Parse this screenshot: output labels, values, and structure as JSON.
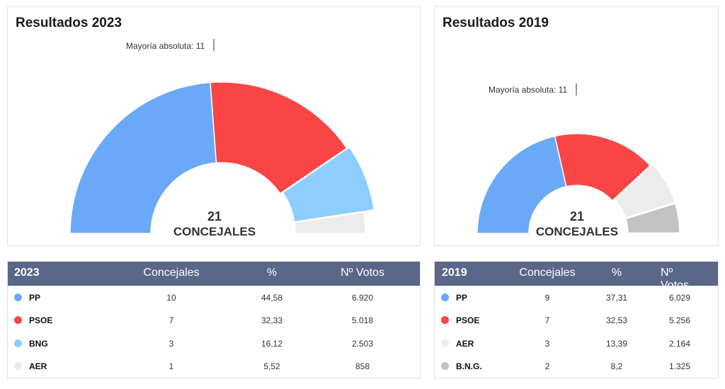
{
  "colors": {
    "header_bg": "#5a6788",
    "PP": "#6aa9f8",
    "PSOE": "#f94545",
    "BNG": "#8ecdff",
    "AER": "#ececec",
    "B.N.G.": "#c2c2c2"
  },
  "chart_data": [
    {
      "type": "parliament-semicircle",
      "title": "Resultados 2023",
      "majority_label": "Mayoría absoluta: 11",
      "majority": 11,
      "center_number": "21",
      "center_label": "CONCEJALES",
      "total_seats": 21,
      "series": [
        {
          "name": "PP",
          "seats": 10,
          "color": "#6aa9f8"
        },
        {
          "name": "PSOE",
          "seats": 7,
          "color": "#f94545"
        },
        {
          "name": "BNG",
          "seats": 3,
          "color": "#8ecdff"
        },
        {
          "name": "AER",
          "seats": 1,
          "color": "#ececec"
        }
      ]
    },
    {
      "type": "parliament-semicircle",
      "title": "Resultados 2019",
      "majority_label": "Mayoría absoluta: 11",
      "majority": 11,
      "center_number": "21",
      "center_label": "CONCEJALES",
      "total_seats": 21,
      "series": [
        {
          "name": "PP",
          "seats": 9,
          "color": "#6aa9f8"
        },
        {
          "name": "PSOE",
          "seats": 7,
          "color": "#f94545"
        },
        {
          "name": "AER",
          "seats": 3,
          "color": "#ececec"
        },
        {
          "name": "B.N.G.",
          "seats": 2,
          "color": "#c2c2c2"
        }
      ]
    }
  ],
  "tables": [
    {
      "year": "2023",
      "headers": [
        "Concejales",
        "%",
        "Nº Votos"
      ],
      "rows": [
        {
          "party": "PP",
          "concejales": "10",
          "pct": "44,58",
          "votos": "6.920",
          "color": "#6aa9f8"
        },
        {
          "party": "PSOE",
          "concejales": "7",
          "pct": "32,33",
          "votos": "5.018",
          "color": "#f94545"
        },
        {
          "party": "BNG",
          "concejales": "3",
          "pct": "16,12",
          "votos": "2.503",
          "color": "#8ecdff"
        },
        {
          "party": "AER",
          "concejales": "1",
          "pct": "5,52",
          "votos": "858",
          "color": "#ececec"
        }
      ]
    },
    {
      "year": "2019",
      "headers": [
        "Concejales",
        "%",
        "Nº Votos"
      ],
      "rows": [
        {
          "party": "PP",
          "concejales": "9",
          "pct": "37,31",
          "votos": "6.029",
          "color": "#6aa9f8"
        },
        {
          "party": "PSOE",
          "concejales": "7",
          "pct": "32,53",
          "votos": "5.256",
          "color": "#f94545"
        },
        {
          "party": "AER",
          "concejales": "3",
          "pct": "13,39",
          "votos": "2.164",
          "color": "#ececec"
        },
        {
          "party": "B.N.G.",
          "concejales": "2",
          "pct": "8,2",
          "votos": "1.325",
          "color": "#c2c2c2"
        }
      ]
    }
  ]
}
